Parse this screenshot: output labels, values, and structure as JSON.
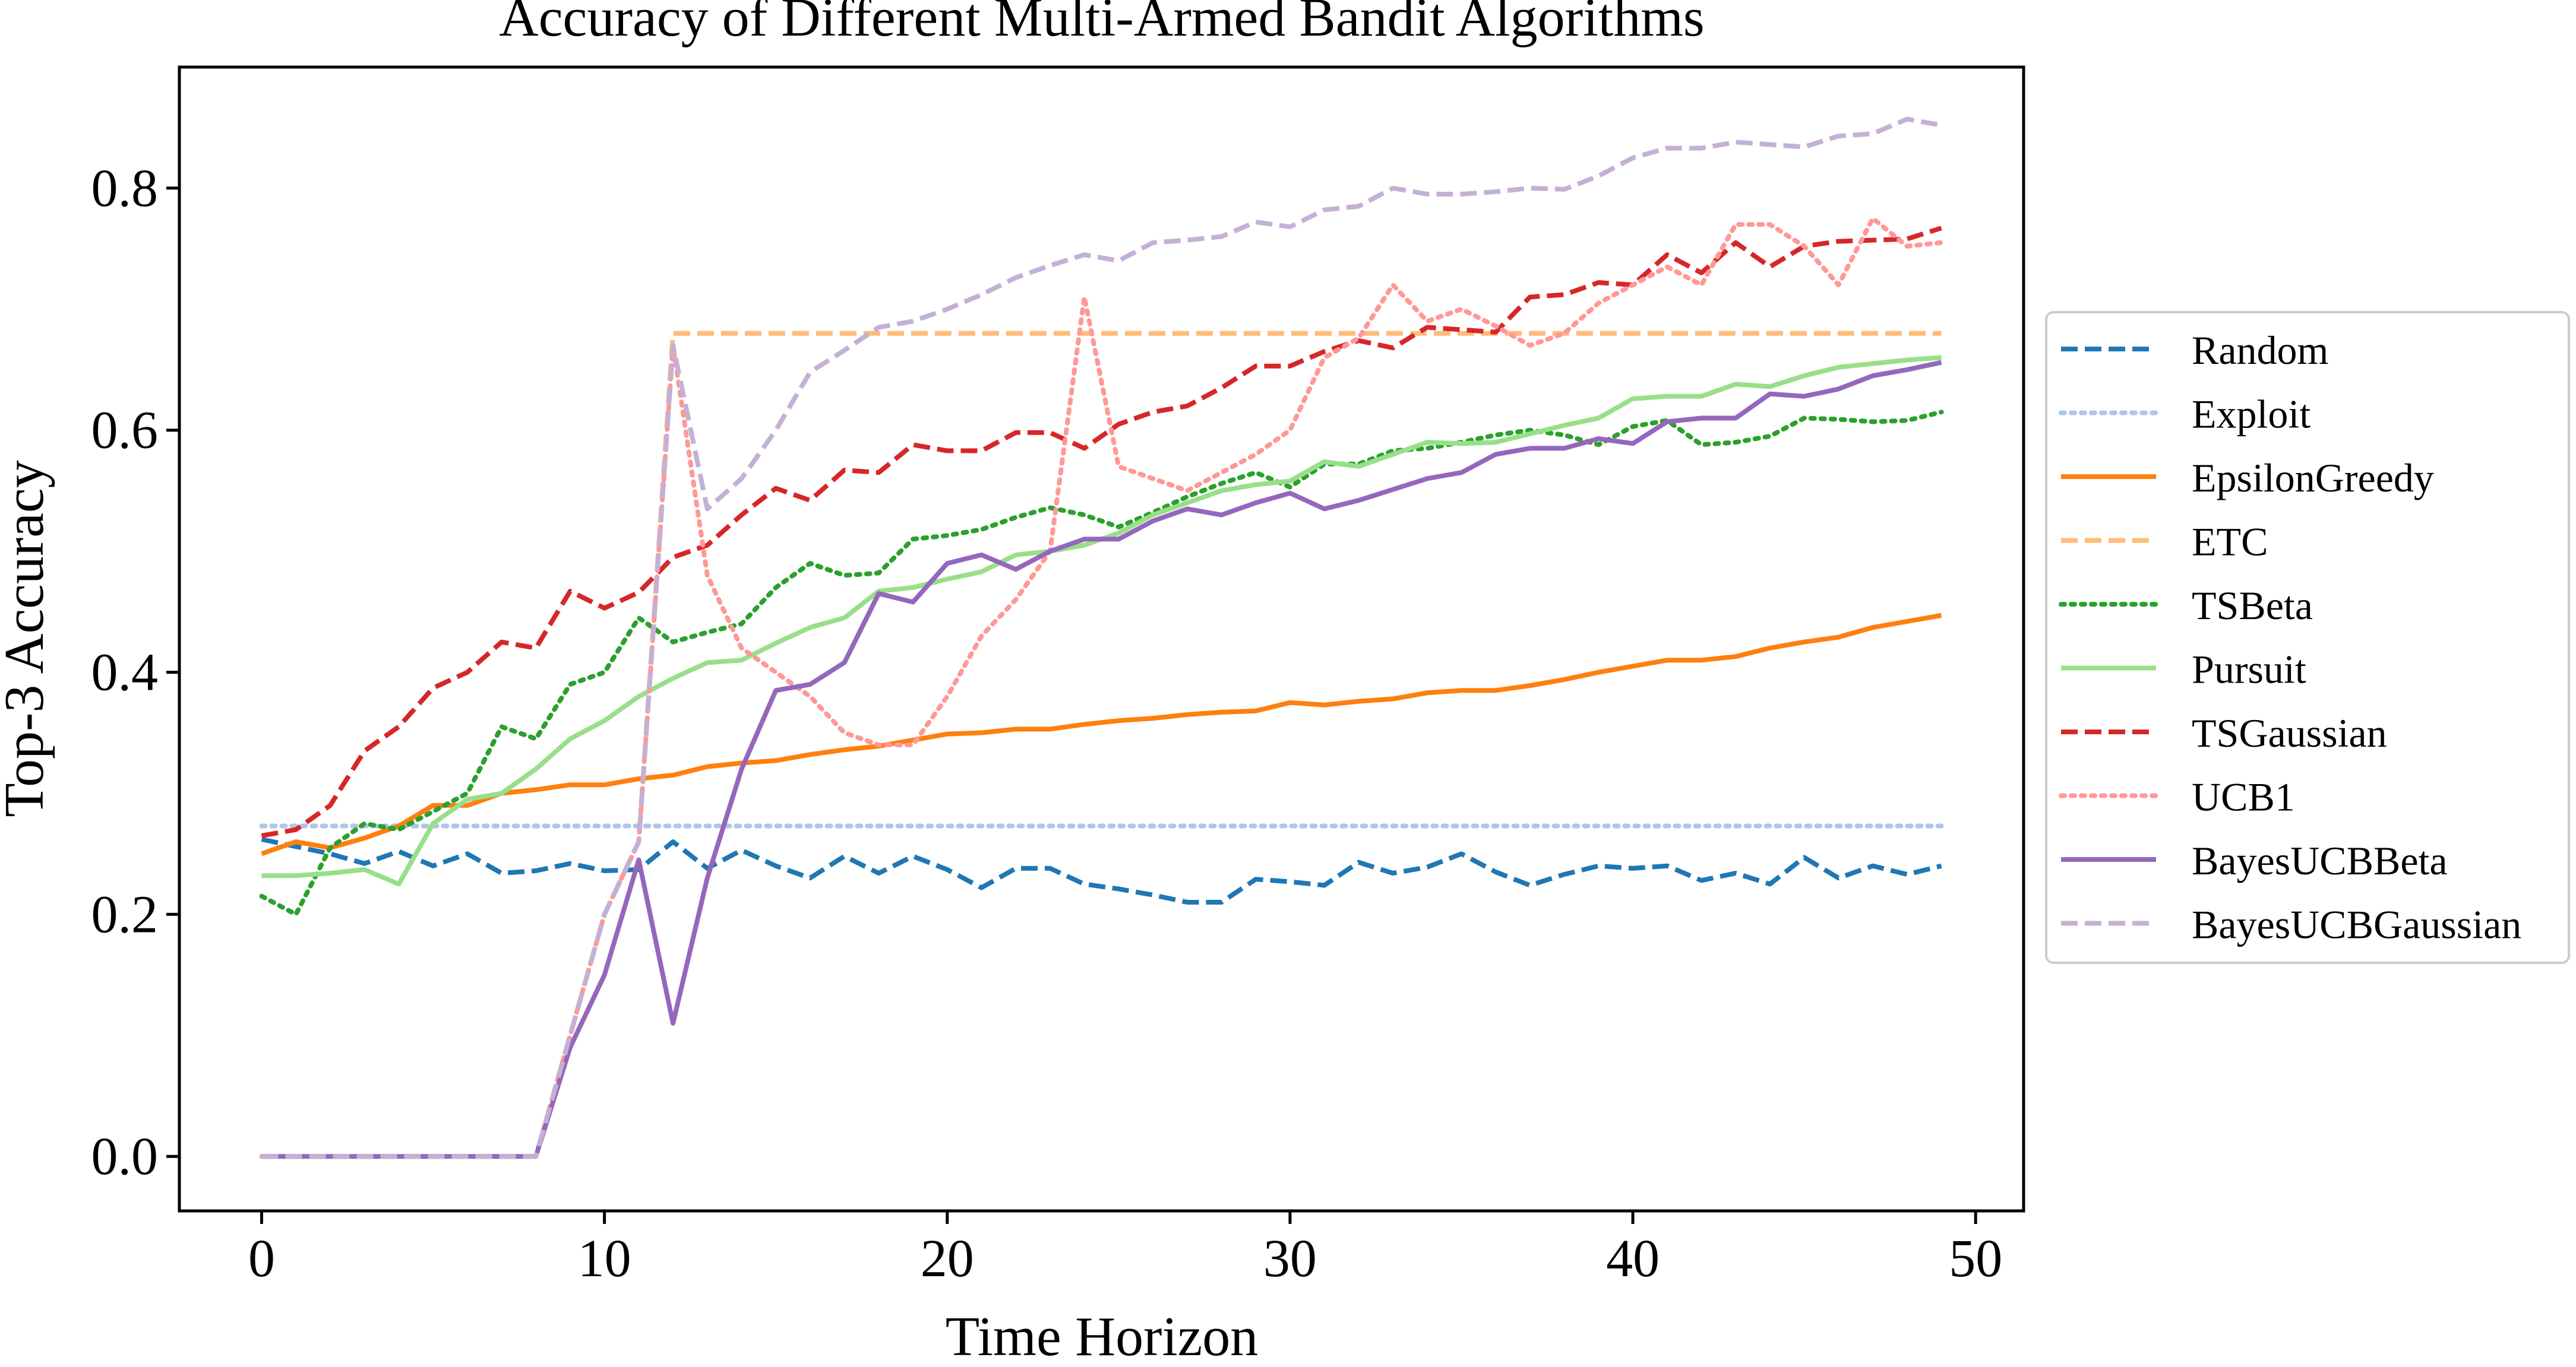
{
  "chart_data": {
    "type": "line",
    "title": "Accuracy of Different Multi-Armed Bandit Algorithms",
    "xlabel": "Time Horizon",
    "ylabel": "Top-3 Accuracy",
    "xlim": [
      -2.4,
      51.4
    ],
    "ylim": [
      -0.045,
      0.9
    ],
    "xticks": [
      0,
      10,
      20,
      30,
      40,
      50
    ],
    "yticks": [
      0.0,
      0.2,
      0.4,
      0.6,
      0.8
    ],
    "xtick_labels": [
      "0",
      "10",
      "20",
      "30",
      "40",
      "50"
    ],
    "ytick_labels": [
      "0.0",
      "0.2",
      "0.4",
      "0.6",
      "0.8"
    ],
    "grid": false,
    "legend_position": "right, outside plot",
    "x": [
      0,
      1,
      2,
      3,
      4,
      5,
      6,
      7,
      8,
      9,
      10,
      11,
      12,
      13,
      14,
      15,
      16,
      17,
      18,
      19,
      20,
      21,
      22,
      23,
      24,
      25,
      26,
      27,
      28,
      29,
      30,
      31,
      32,
      33,
      34,
      35,
      36,
      37,
      38,
      39,
      40,
      41,
      42,
      43,
      44,
      45,
      46,
      47,
      48,
      49
    ],
    "series": [
      {
        "name": "Random",
        "color": "#1f77b4",
        "dash": "dashed",
        "values": [
          0.262,
          0.256,
          0.25,
          0.242,
          0.252,
          0.24,
          0.25,
          0.234,
          0.236,
          0.242,
          0.236,
          0.237,
          0.26,
          0.238,
          0.253,
          0.24,
          0.23,
          0.248,
          0.234,
          0.248,
          0.237,
          0.222,
          0.238,
          0.238,
          0.225,
          0.221,
          0.216,
          0.21,
          0.21,
          0.229,
          0.227,
          0.224,
          0.243,
          0.234,
          0.239,
          0.25,
          0.235,
          0.224,
          0.233,
          0.24,
          0.238,
          0.24,
          0.228,
          0.234,
          0.225,
          0.247,
          0.23,
          0.24,
          0.233,
          0.24
        ]
      },
      {
        "name": "Exploit",
        "color": "#aec7e8",
        "dash": "dotted",
        "values": [
          0.273,
          0.273,
          0.273,
          0.273,
          0.273,
          0.273,
          0.273,
          0.273,
          0.273,
          0.273,
          0.273,
          0.273,
          0.273,
          0.273,
          0.273,
          0.273,
          0.273,
          0.273,
          0.273,
          0.273,
          0.273,
          0.273,
          0.273,
          0.273,
          0.273,
          0.273,
          0.273,
          0.273,
          0.273,
          0.273,
          0.273,
          0.273,
          0.273,
          0.273,
          0.273,
          0.273,
          0.273,
          0.273,
          0.273,
          0.273,
          0.273,
          0.273,
          0.273,
          0.273,
          0.273,
          0.273,
          0.273,
          0.273,
          0.273,
          0.273
        ]
      },
      {
        "name": "EpsilonGreedy",
        "color": "#ff7f0e",
        "dash": "solid",
        "values": [
          0.25,
          0.26,
          0.255,
          0.263,
          0.273,
          0.29,
          0.29,
          0.3,
          0.303,
          0.307,
          0.307,
          0.312,
          0.315,
          0.322,
          0.325,
          0.327,
          0.332,
          0.336,
          0.339,
          0.344,
          0.349,
          0.35,
          0.353,
          0.353,
          0.357,
          0.36,
          0.362,
          0.365,
          0.367,
          0.368,
          0.375,
          0.373,
          0.376,
          0.378,
          0.383,
          0.385,
          0.385,
          0.389,
          0.394,
          0.4,
          0.405,
          0.41,
          0.41,
          0.413,
          0.42,
          0.425,
          0.429,
          0.437,
          0.442,
          0.447
        ]
      },
      {
        "name": "ETC",
        "color": "#ffbb78",
        "dash": "dashed",
        "values": [
          0,
          0,
          0,
          0,
          0,
          0,
          0,
          0,
          0,
          0.1,
          0.2,
          0.26,
          0.68,
          0.68,
          0.68,
          0.68,
          0.68,
          0.68,
          0.68,
          0.68,
          0.68,
          0.68,
          0.68,
          0.68,
          0.68,
          0.68,
          0.68,
          0.68,
          0.68,
          0.68,
          0.68,
          0.68,
          0.68,
          0.68,
          0.68,
          0.68,
          0.68,
          0.68,
          0.68,
          0.68,
          0.68,
          0.68,
          0.68,
          0.68,
          0.68,
          0.68,
          0.68,
          0.68,
          0.68,
          0.68
        ]
      },
      {
        "name": "TSBeta",
        "color": "#2ca02c",
        "dash": "dotted",
        "values": [
          0.215,
          0.2,
          0.255,
          0.275,
          0.27,
          0.285,
          0.3,
          0.355,
          0.345,
          0.39,
          0.4,
          0.445,
          0.425,
          0.433,
          0.44,
          0.47,
          0.49,
          0.48,
          0.482,
          0.51,
          0.513,
          0.518,
          0.528,
          0.536,
          0.53,
          0.52,
          0.532,
          0.545,
          0.556,
          0.565,
          0.553,
          0.572,
          0.572,
          0.583,
          0.585,
          0.59,
          0.596,
          0.6,
          0.596,
          0.588,
          0.603,
          0.608,
          0.588,
          0.59,
          0.595,
          0.61,
          0.609,
          0.607,
          0.608,
          0.615
        ]
      },
      {
        "name": "Pursuit",
        "color": "#98df8a",
        "dash": "solid",
        "values": [
          0.232,
          0.232,
          0.234,
          0.237,
          0.225,
          0.275,
          0.295,
          0.3,
          0.32,
          0.345,
          0.36,
          0.38,
          0.395,
          0.408,
          0.41,
          0.424,
          0.437,
          0.445,
          0.467,
          0.47,
          0.477,
          0.483,
          0.497,
          0.5,
          0.505,
          0.515,
          0.53,
          0.54,
          0.55,
          0.555,
          0.558,
          0.574,
          0.57,
          0.58,
          0.59,
          0.589,
          0.59,
          0.597,
          0.604,
          0.61,
          0.626,
          0.628,
          0.628,
          0.638,
          0.636,
          0.645,
          0.652,
          0.655,
          0.658,
          0.66
        ]
      },
      {
        "name": "TSGaussian",
        "color": "#d62728",
        "dash": "dashed",
        "values": [
          0.265,
          0.27,
          0.29,
          0.335,
          0.355,
          0.387,
          0.4,
          0.425,
          0.42,
          0.467,
          0.453,
          0.466,
          0.495,
          0.505,
          0.53,
          0.552,
          0.542,
          0.567,
          0.565,
          0.588,
          0.583,
          0.583,
          0.598,
          0.598,
          0.585,
          0.605,
          0.615,
          0.62,
          0.635,
          0.653,
          0.653,
          0.665,
          0.674,
          0.668,
          0.685,
          0.683,
          0.681,
          0.71,
          0.712,
          0.722,
          0.72,
          0.745,
          0.73,
          0.755,
          0.735,
          0.752,
          0.756,
          0.757,
          0.758,
          0.767
        ]
      },
      {
        "name": "UCB1",
        "color": "#ff9896",
        "dash": "dotted",
        "values": [
          0,
          0,
          0,
          0,
          0,
          0,
          0,
          0,
          0,
          0.1,
          0.2,
          0.26,
          0.67,
          0.48,
          0.42,
          0.4,
          0.38,
          0.35,
          0.34,
          0.34,
          0.38,
          0.43,
          0.46,
          0.5,
          0.71,
          0.57,
          0.56,
          0.55,
          0.565,
          0.58,
          0.6,
          0.66,
          0.676,
          0.72,
          0.69,
          0.7,
          0.686,
          0.67,
          0.68,
          0.705,
          0.72,
          0.735,
          0.72,
          0.77,
          0.77,
          0.752,
          0.72,
          0.775,
          0.752,
          0.755
        ]
      },
      {
        "name": "BayesUCBBeta",
        "color": "#9467bd",
        "dash": "solid",
        "values": [
          0,
          0,
          0,
          0,
          0,
          0,
          0,
          0,
          0,
          0.09,
          0.15,
          0.245,
          0.11,
          0.23,
          0.32,
          0.385,
          0.39,
          0.408,
          0.465,
          0.458,
          0.49,
          0.497,
          0.485,
          0.5,
          0.51,
          0.51,
          0.525,
          0.535,
          0.53,
          0.54,
          0.548,
          0.535,
          0.542,
          0.551,
          0.56,
          0.565,
          0.58,
          0.585,
          0.585,
          0.593,
          0.589,
          0.607,
          0.61,
          0.61,
          0.63,
          0.628,
          0.634,
          0.645,
          0.65,
          0.656
        ]
      },
      {
        "name": "BayesUCBGaussian",
        "color": "#c5b0d5",
        "dash": "dashed",
        "values": [
          0,
          0,
          0,
          0,
          0,
          0,
          0,
          0,
          0,
          0.1,
          0.2,
          0.26,
          0.67,
          0.535,
          0.56,
          0.6,
          0.648,
          0.666,
          0.685,
          0.69,
          0.7,
          0.712,
          0.726,
          0.736,
          0.745,
          0.74,
          0.755,
          0.757,
          0.76,
          0.772,
          0.768,
          0.782,
          0.785,
          0.8,
          0.795,
          0.795,
          0.797,
          0.8,
          0.799,
          0.81,
          0.825,
          0.833,
          0.833,
          0.838,
          0.836,
          0.834,
          0.843,
          0.845,
          0.857,
          0.852
        ]
      }
    ]
  }
}
